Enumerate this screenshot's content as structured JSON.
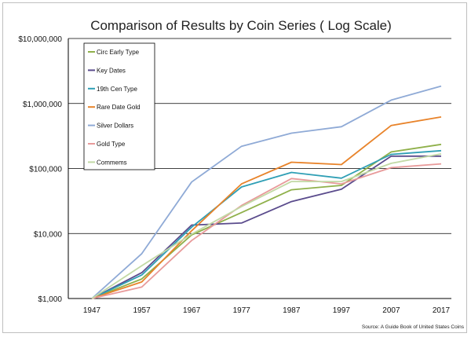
{
  "chart_data": {
    "type": "line",
    "title": "Comparison of Results by Coin Series  ( Log Scale)",
    "xlabel": "",
    "ylabel": "",
    "y_scale": "log",
    "ylim": [
      1000,
      10000000
    ],
    "y_ticks": [
      1000,
      10000,
      100000,
      1000000,
      10000000
    ],
    "y_tick_labels": [
      "$1,000",
      "$10,000",
      "$100,000",
      "$1,000,000",
      "$10,000,000"
    ],
    "categories": [
      "1947",
      "1957",
      "1967",
      "1977",
      "1987",
      "1997",
      "2007",
      "2017"
    ],
    "legend_position": "top-left",
    "source": "Source:  A Guide Book of United States Coins",
    "series": [
      {
        "name": "Circ Early Type",
        "color": "#8fb04a",
        "values": [
          1000,
          2000,
          9500,
          21000,
          47000,
          55000,
          180000,
          235000
        ]
      },
      {
        "name": "Key Dates",
        "color": "#5a4b8c",
        "values": [
          1000,
          2500,
          13500,
          14500,
          31000,
          48000,
          155000,
          155000
        ]
      },
      {
        "name": "19th Cen Type",
        "color": "#2f9fb5",
        "values": [
          1000,
          2300,
          12500,
          52000,
          87000,
          71000,
          165000,
          188000
        ]
      },
      {
        "name": "Rare Date Gold",
        "color": "#e8832a",
        "values": [
          1000,
          1800,
          11000,
          58000,
          125000,
          115000,
          460000,
          620000
        ]
      },
      {
        "name": "Silver Dollars",
        "color": "#8faad6",
        "values": [
          1000,
          4900,
          62000,
          220000,
          350000,
          440000,
          1130000,
          1850000
        ]
      },
      {
        "name": "Gold Type",
        "color": "#e89a9a",
        "values": [
          1000,
          1500,
          7800,
          27000,
          70000,
          58000,
          103000,
          118000
        ]
      },
      {
        "name": "Commems",
        "color": "#c2d9a5",
        "values": [
          1000,
          3200,
          9800,
          26000,
          63000,
          63000,
          120000,
          168000
        ]
      }
    ]
  }
}
